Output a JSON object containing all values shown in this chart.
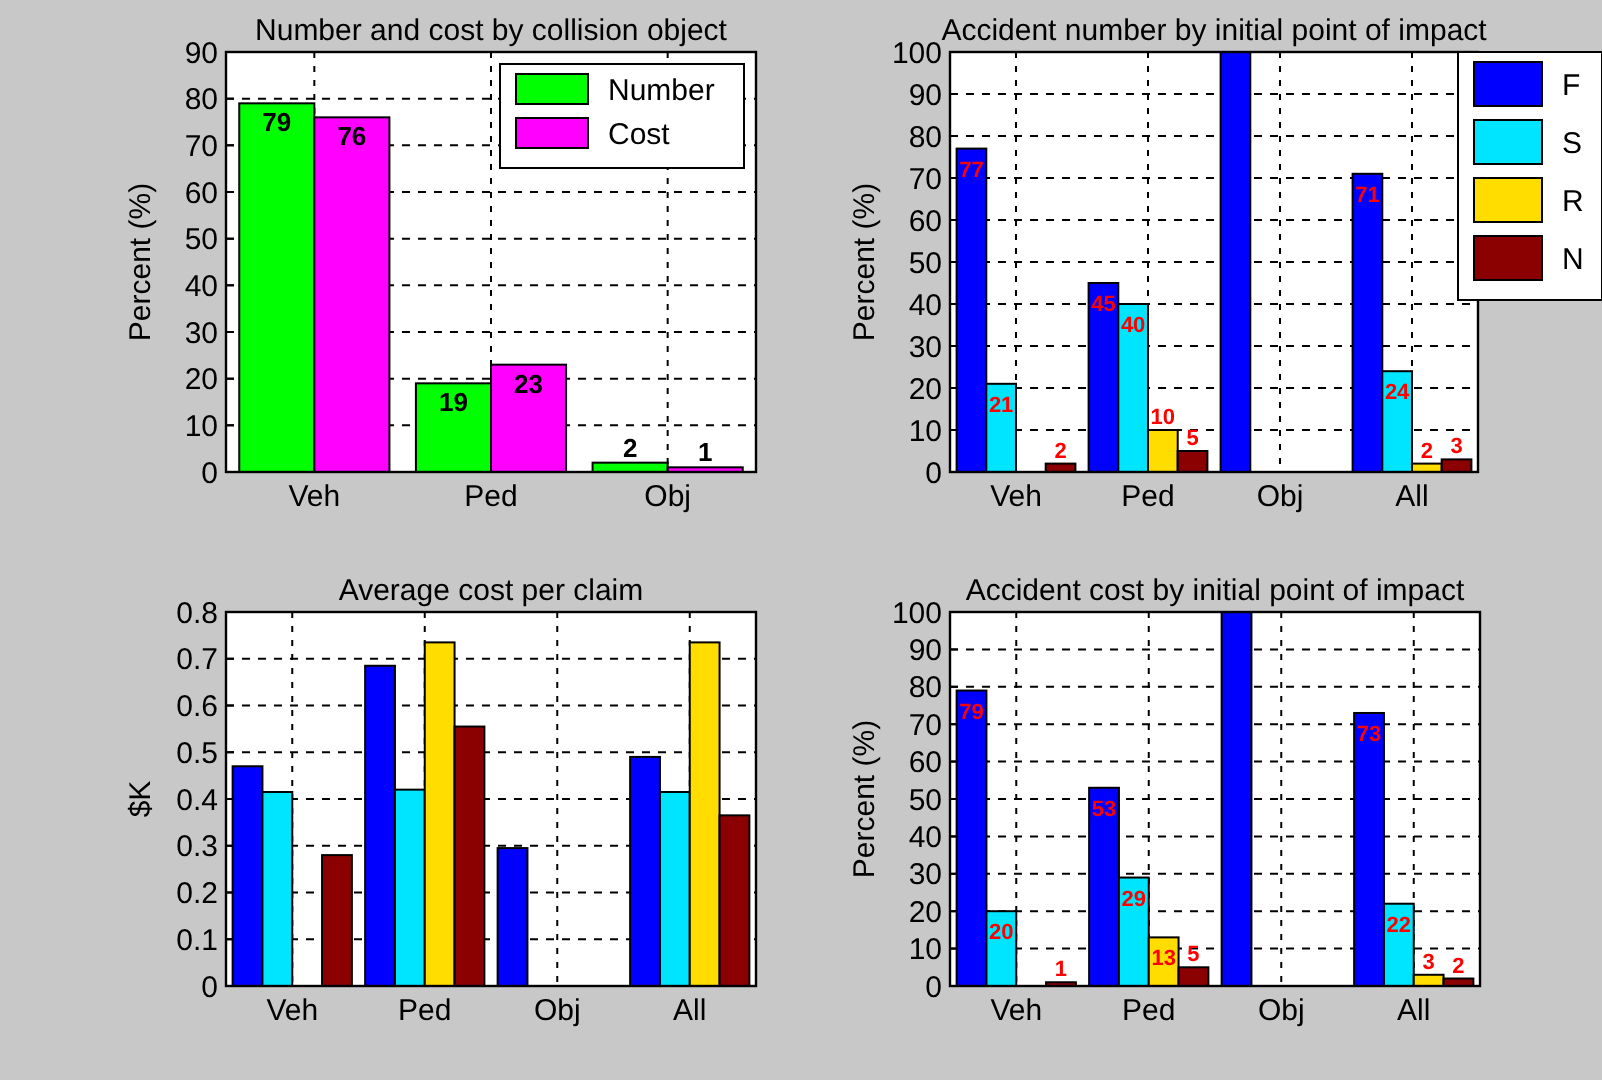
{
  "chart_data": [
    {
      "type": "bar",
      "title": "Number and cost by collision object",
      "ylabel": "Percent (%)",
      "categories": [
        "Veh",
        "Ped",
        "Obj"
      ],
      "ylim": [
        0,
        90
      ],
      "yticks": [
        0,
        10,
        20,
        30,
        40,
        50,
        60,
        70,
        80,
        90
      ],
      "grid": true,
      "legend": "top right",
      "data_labels": true,
      "series": [
        {
          "name": "Number",
          "color": "#00ff00",
          "values": [
            79,
            19,
            2
          ]
        },
        {
          "name": "Cost",
          "color": "#ff00ff",
          "values": [
            76,
            23,
            1
          ]
        }
      ]
    },
    {
      "type": "bar",
      "title": "Accident number by initial point of impact",
      "ylabel": "Percent (%)",
      "categories": [
        "Veh",
        "Ped",
        "Obj",
        "All"
      ],
      "ylim": [
        0,
        100
      ],
      "yticks": [
        0,
        10,
        20,
        30,
        40,
        50,
        60,
        70,
        80,
        90,
        100
      ],
      "grid": true,
      "legend": "top right",
      "series": [
        {
          "name": "F",
          "color": "#0000ff",
          "values": [
            77,
            45,
            100,
            71
          ],
          "value_labels": [
            "77",
            "45",
            null,
            "71"
          ]
        },
        {
          "name": "S",
          "color": "#00e5ff",
          "values": [
            21,
            40,
            null,
            24
          ],
          "value_labels": [
            "21",
            "40",
            null,
            "24"
          ]
        },
        {
          "name": "R",
          "color": "#ffdd00",
          "values": [
            null,
            10,
            null,
            2
          ],
          "value_labels": [
            null,
            "10",
            null,
            "2"
          ]
        },
        {
          "name": "N",
          "color": "#8b0000",
          "values": [
            2,
            5,
            null,
            3
          ],
          "value_labels": [
            "2",
            "5",
            null,
            "3"
          ]
        }
      ]
    },
    {
      "type": "bar",
      "title": "Average cost per claim",
      "ylabel": "$K",
      "categories": [
        "Veh",
        "Ped",
        "Obj",
        "All"
      ],
      "ylim": [
        0,
        0.8
      ],
      "yticks": [
        0,
        0.1,
        0.2,
        0.3,
        0.4,
        0.5,
        0.6,
        0.7,
        0.8
      ],
      "grid": true,
      "series": [
        {
          "color": "#0000ff",
          "values": [
            0.47,
            0.685,
            0.295,
            0.49
          ]
        },
        {
          "color": "#00e5ff",
          "values": [
            0.415,
            0.42,
            null,
            0.415
          ]
        },
        {
          "color": "#ffdd00",
          "values": [
            null,
            0.735,
            null,
            0.735
          ]
        },
        {
          "color": "#8b0000",
          "values": [
            0.28,
            0.555,
            null,
            0.365
          ]
        }
      ]
    },
    {
      "type": "bar",
      "title": "Accident cost by initial point of impact",
      "ylabel": "Percent (%)",
      "categories": [
        "Veh",
        "Ped",
        "Obj",
        "All"
      ],
      "ylim": [
        0,
        100
      ],
      "yticks": [
        0,
        10,
        20,
        30,
        40,
        50,
        60,
        70,
        80,
        90,
        100
      ],
      "grid": true,
      "series": [
        {
          "color": "#0000ff",
          "values": [
            79,
            53,
            100,
            73
          ],
          "value_labels": [
            "79",
            "53",
            null,
            "73"
          ]
        },
        {
          "color": "#00e5ff",
          "values": [
            20,
            29,
            null,
            22
          ],
          "value_labels": [
            "20",
            "29",
            null,
            "22"
          ]
        },
        {
          "color": "#ffdd00",
          "values": [
            null,
            13,
            null,
            3
          ],
          "value_labels": [
            null,
            "13",
            null,
            "3"
          ]
        },
        {
          "color": "#8b0000",
          "values": [
            1,
            5,
            null,
            2
          ],
          "value_labels": [
            "1",
            "5",
            null,
            "2"
          ]
        }
      ]
    }
  ]
}
